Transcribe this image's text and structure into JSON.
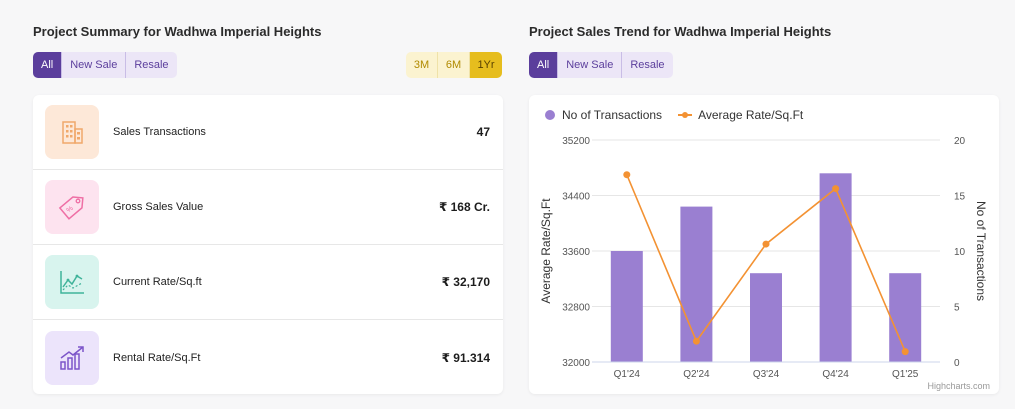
{
  "summary": {
    "title": "Project Summary for Wadhwa Imperial Heights",
    "filters": [
      "All",
      "New Sale",
      "Resale"
    ],
    "active_filter": "All",
    "periods": [
      "3M",
      "6M",
      "1Yr"
    ],
    "active_period": "1Yr",
    "metrics": [
      {
        "icon": "building-icon",
        "label": "Sales Transactions",
        "value": "47"
      },
      {
        "icon": "price-tag-icon",
        "label": "Gross Sales Value",
        "value": "₹ 168 Cr."
      },
      {
        "icon": "line-chart-icon",
        "label": "Current Rate/Sq.ft",
        "value": "₹ 32,170"
      },
      {
        "icon": "bar-growth-icon",
        "label": "Rental Rate/Sq.Ft",
        "value": "₹ 91.314"
      }
    ],
    "colors": {
      "building": "#fde8d8",
      "tag": "#fde3ef",
      "chart": "#d8f4ee",
      "growth": "#ece4fb"
    }
  },
  "trend": {
    "title": "Project Sales Trend for Wadhwa Imperial Heights",
    "filters": [
      "All",
      "New Sale",
      "Resale"
    ],
    "active_filter": "All",
    "credit": "Highcharts.com"
  },
  "chart_data": {
    "type": "bar",
    "categories": [
      "Q1'24",
      "Q2'24",
      "Q3'24",
      "Q4'24",
      "Q1'25"
    ],
    "series": [
      {
        "name": "No of Transactions",
        "type": "bar",
        "axis": "right",
        "values": [
          10,
          14,
          8,
          17,
          8
        ],
        "color": "#9a7fd1"
      },
      {
        "name": "Average Rate/Sq.Ft",
        "type": "line",
        "axis": "left",
        "values": [
          34700,
          32300,
          33700,
          34500,
          32150
        ],
        "color": "#f39233"
      }
    ],
    "ylabel": "Average Rate/Sq.Ft",
    "y2label": "No of Transactions",
    "ylim": [
      32000,
      35200
    ],
    "yticks": [
      "32000",
      "32800",
      "33600",
      "34400",
      "35200"
    ],
    "y2lim": [
      0,
      20
    ],
    "y2ticks": [
      "0",
      "5",
      "10",
      "15",
      "20"
    ],
    "legend": "top-left",
    "grid": true
  }
}
